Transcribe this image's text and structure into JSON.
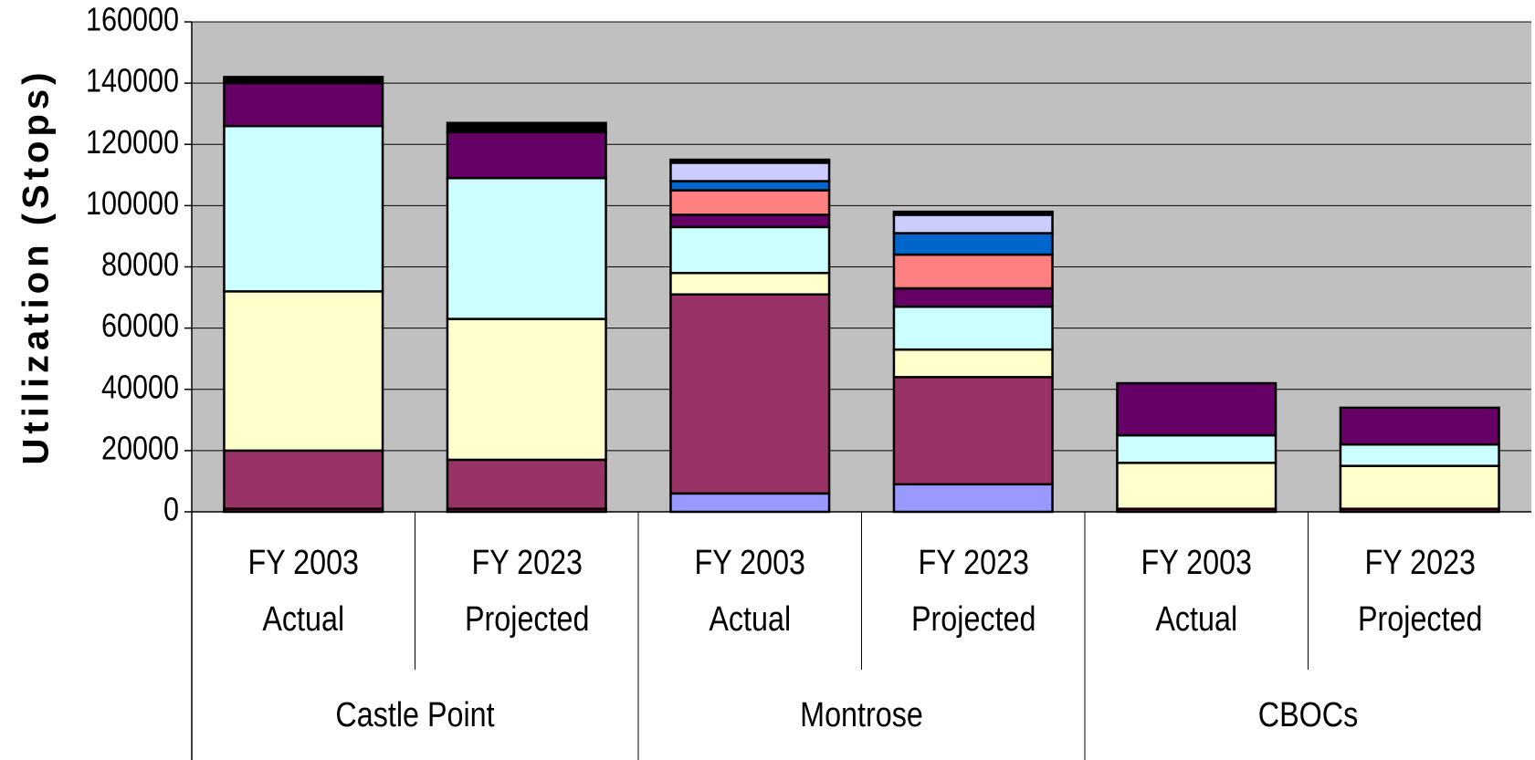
{
  "chart_data": {
    "type": "stacked-bar",
    "y_label": "Utilization (Stops)",
    "categories": [
      "FY 2003 Actual",
      "FY 2023 Projected",
      "FY 2003 Actual",
      "FY 2023 Projected",
      "FY 2003 Actual",
      "FY 2023 Projected"
    ],
    "groups": [
      "Castle Point",
      "Montrose",
      "CBOCs"
    ],
    "ylim": [
      0,
      160000
    ],
    "yticks": [
      0,
      20000,
      40000,
      60000,
      80000,
      100000,
      120000,
      140000,
      160000
    ],
    "grid": true,
    "background": "#c0c0c0",
    "series": [
      {
        "color": "#9999ff",
        "values": [
          0,
          0,
          6000,
          9000,
          0,
          0
        ]
      },
      {
        "color": "#800040",
        "values": [
          1000,
          1000,
          0,
          0,
          1000,
          1000
        ]
      },
      {
        "color": "#993366",
        "values": [
          19000,
          16000,
          65000,
          35000,
          0,
          0
        ]
      },
      {
        "color": "#ffffcc",
        "values": [
          52000,
          46000,
          7000,
          9000,
          15000,
          14000
        ]
      },
      {
        "color": "#ccffff",
        "values": [
          54000,
          46000,
          15000,
          14000,
          9000,
          7000
        ]
      },
      {
        "color": "#660066",
        "values": [
          14000,
          15000,
          4000,
          6000,
          17000,
          12000
        ]
      },
      {
        "color": "#ff8080",
        "values": [
          0,
          0,
          8000,
          11000,
          0,
          0
        ]
      },
      {
        "color": "#0066cc",
        "values": [
          0,
          0,
          3000,
          7000,
          0,
          0
        ]
      },
      {
        "color": "#ccccff",
        "values": [
          0,
          0,
          6000,
          6000,
          0,
          0
        ]
      },
      {
        "color": "#000000",
        "values": [
          2000,
          3000,
          1000,
          1000,
          0,
          0
        ]
      }
    ]
  }
}
